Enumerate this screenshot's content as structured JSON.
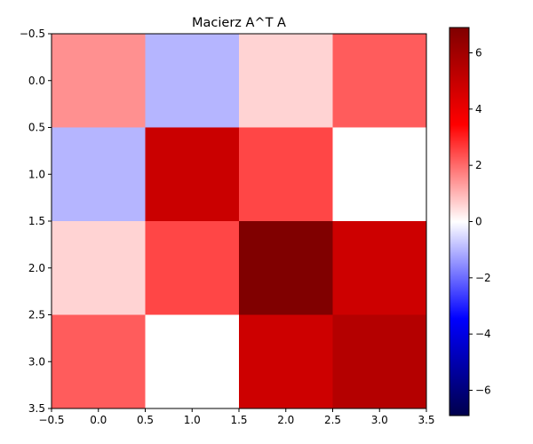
{
  "chart_data": {
    "type": "heatmap",
    "title": "Macierz A^T A",
    "xlabel": "",
    "ylabel": "",
    "x_ticks": [
      "−0.5",
      "0.0",
      "0.5",
      "1.0",
      "1.5",
      "2.0",
      "2.5",
      "3.0",
      "3.5"
    ],
    "y_ticks": [
      "−0.5",
      "0.0",
      "0.5",
      "1.0",
      "1.5",
      "2.0",
      "2.5",
      "3.0",
      "3.5"
    ],
    "x_range": [
      -0.5,
      3.5
    ],
    "y_range": [
      3.5,
      -0.5
    ],
    "values": [
      [
        1.5,
        -1.0,
        0.6,
        2.2
      ],
      [
        -1.0,
        4.9,
        2.5,
        0.0
      ],
      [
        0.6,
        2.5,
        6.9,
        4.8
      ],
      [
        2.2,
        0.0,
        4.8,
        5.5
      ]
    ],
    "colormap": "seismic",
    "color_range": [
      -6.9,
      6.9
    ],
    "colorbar_ticks": [
      "−6",
      "−4",
      "−2",
      "0",
      "2",
      "4",
      "6"
    ],
    "colorbar_values": [
      -6,
      -4,
      -2,
      0,
      2,
      4,
      6
    ],
    "legend": "colorbar-right",
    "grid": false
  }
}
